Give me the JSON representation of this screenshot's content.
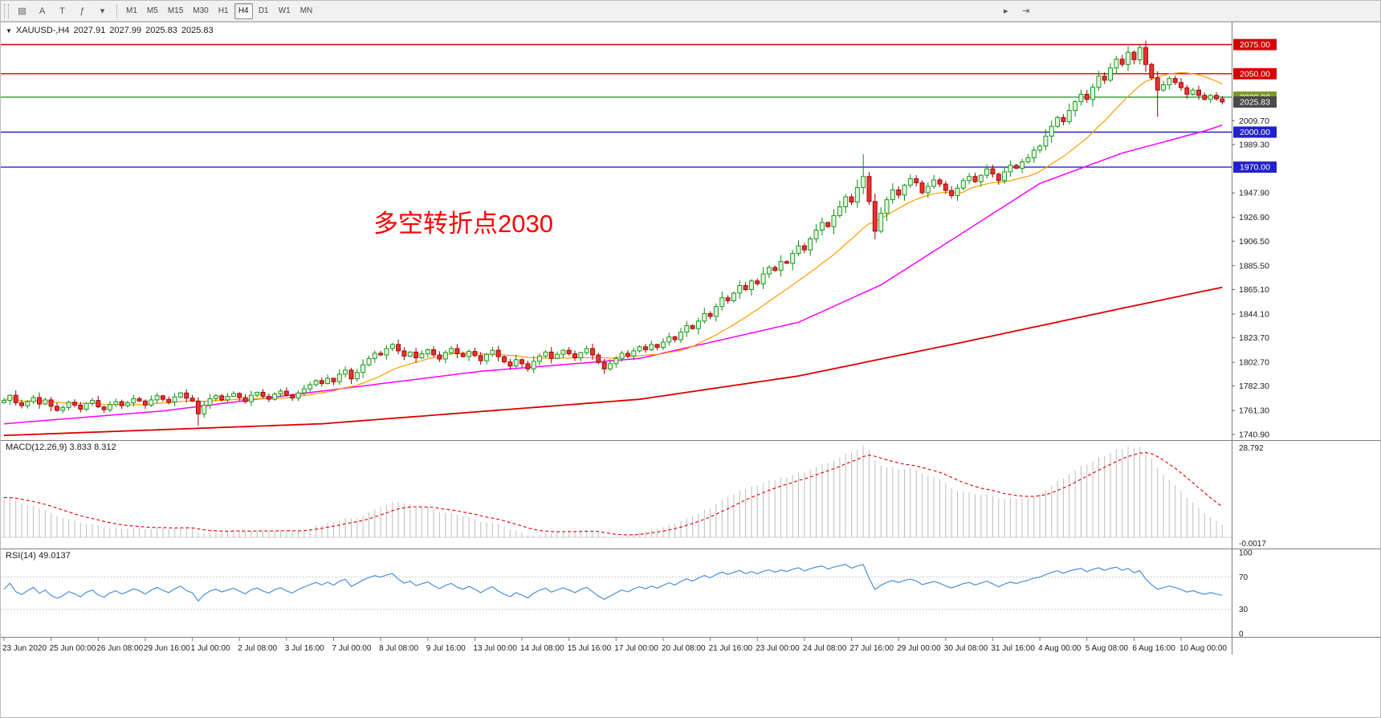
{
  "toolbar": {
    "left_buttons": [
      {
        "name": "chart-type-button",
        "glyph": "▤"
      },
      {
        "name": "cursor-button",
        "glyph": "A"
      },
      {
        "name": "text-tool-button",
        "glyph": "T"
      },
      {
        "name": "indicators-button",
        "glyph": "ƒ"
      },
      {
        "name": "dropdown-button",
        "glyph": "▾"
      }
    ],
    "timeframes": [
      "M1",
      "M5",
      "M15",
      "M30",
      "H1",
      "H4",
      "D1",
      "W1",
      "MN"
    ],
    "active_timeframe": "H4",
    "right_buttons": [
      {
        "name": "auto-scroll-button",
        "glyph": "▸"
      },
      {
        "name": "chart-shift-button",
        "glyph": "⇥"
      }
    ]
  },
  "chart": {
    "symbol_period": "XAUUSD-,H4",
    "open": "2027.91",
    "high": "2027.99",
    "low": "2025.83",
    "close": "2025.83",
    "annotation": "多空转折点2030",
    "current_price": "2025.83",
    "current_price_bg": "#4a4a4a",
    "hlines": [
      {
        "price": 2075.0,
        "color": "#d40000",
        "label": "2075.00",
        "label_bg": "#d40000"
      },
      {
        "price": 2050.0,
        "color": "#d40000",
        "label": "2050.00",
        "label_bg": "#d40000"
      },
      {
        "price": 2030.0,
        "color": "#2e9b2e",
        "label": "2030.00",
        "label_bg": "#7c9a27"
      },
      {
        "price": 2000.0,
        "color": "#2222cc",
        "label": "2000.00",
        "label_bg": "#2222cc"
      },
      {
        "price": 1970.0,
        "color": "#2222cc",
        "label": "1970.00",
        "label_bg": "#2222cc"
      }
    ],
    "y_ticks": [
      "2009.70",
      "1989.30",
      "1947.90",
      "1926.90",
      "1906.50",
      "1885.50",
      "1865.10",
      "1844.10",
      "1823.70",
      "1802.70",
      "1782.30",
      "1761.30",
      "1740.90"
    ]
  },
  "macd": {
    "title": "MACD(12,26,9)",
    "main_value": "3.833",
    "signal_value": "8.312",
    "axis_top": "28.792",
    "axis_bottom": "-0.0017",
    "histogram_color": "#bdbdbd",
    "signal_color": "#e00000"
  },
  "rsi": {
    "title": "RSI(14)",
    "value": "49.0137",
    "axis": [
      "100",
      "70",
      "30",
      "0"
    ],
    "levels": [
      70,
      30
    ],
    "line_color": "#4a90d9"
  },
  "chart_data": {
    "type": "candlestick",
    "symbol": "XAUUSD",
    "timeframe": "H4",
    "title": "XAUUSD-,H4 2027.91 2027.99 2025.83 2025.83",
    "x_labels": [
      "23 Jun 2020",
      "25 Jun 00:00",
      "26 Jun 08:00",
      "29 Jun 16:00",
      "1 Jul 00:00",
      "2 Jul 08:00",
      "3 Jul 16:00",
      "7 Jul 00:00",
      "8 Jul 08:00",
      "9 Jul 16:00",
      "13 Jul 00:00",
      "14 Jul 08:00",
      "15 Jul 16:00",
      "17 Jul 00:00",
      "20 Jul 08:00",
      "21 Jul 16:00",
      "23 Jul 00:00",
      "24 Jul 08:00",
      "27 Jul 16:00",
      "29 Jul 00:00",
      "30 Jul 08:00",
      "31 Jul 16:00",
      "4 Aug 00:00",
      "5 Aug 08:00",
      "6 Aug 16:00",
      "10 Aug 00:00"
    ],
    "candles_per_label": 8,
    "y_range": [
      1736,
      2085
    ],
    "first_open": 1768.0,
    "closes": [
      1770.0,
      1774.5,
      1768.0,
      1765.5,
      1769.0,
      1772.5,
      1767.0,
      1770.5,
      1765.0,
      1761.5,
      1764.0,
      1768.5,
      1766.0,
      1762.5,
      1767.5,
      1770.0,
      1764.5,
      1762.0,
      1766.5,
      1769.0,
      1765.5,
      1768.0,
      1771.5,
      1769.5,
      1766.0,
      1770.5,
      1774.0,
      1771.0,
      1768.5,
      1773.0,
      1776.5,
      1772.0,
      1769.5,
      1758.5,
      1766.0,
      1771.5,
      1774.0,
      1770.5,
      1773.5,
      1776.0,
      1772.5,
      1769.0,
      1774.5,
      1777.0,
      1773.5,
      1771.0,
      1775.5,
      1778.0,
      1774.5,
      1772.0,
      1776.5,
      1780.0,
      1783.5,
      1787.0,
      1784.5,
      1789.0,
      1786.0,
      1792.5,
      1796.0,
      1788.5,
      1794.0,
      1800.5,
      1806.0,
      1810.5,
      1809.0,
      1814.5,
      1818.0,
      1812.5,
      1808.0,
      1811.5,
      1806.5,
      1810.0,
      1813.5,
      1809.0,
      1805.5,
      1811.0,
      1814.5,
      1810.0,
      1807.5,
      1812.0,
      1808.5,
      1804.0,
      1809.5,
      1813.0,
      1807.5,
      1803.0,
      1799.5,
      1805.0,
      1801.5,
      1797.0,
      1803.5,
      1808.0,
      1811.5,
      1806.0,
      1809.5,
      1813.0,
      1810.0,
      1806.5,
      1811.0,
      1814.5,
      1809.0,
      1802.5,
      1797.0,
      1801.5,
      1806.0,
      1810.5,
      1808.0,
      1812.5,
      1816.0,
      1813.5,
      1818.0,
      1815.5,
      1820.0,
      1824.5,
      1822.0,
      1828.5,
      1834.0,
      1831.5,
      1838.0,
      1844.5,
      1842.0,
      1850.5,
      1858.0,
      1855.5,
      1862.0,
      1868.5,
      1865.0,
      1872.5,
      1870.0,
      1878.5,
      1884.0,
      1881.5,
      1889.0,
      1887.5,
      1896.0,
      1902.5,
      1899.0,
      1908.5,
      1916.0,
      1922.5,
      1919.0,
      1928.5,
      1936.0,
      1944.5,
      1940.0,
      1952.5,
      1962.0,
      1940.5,
      1915.0,
      1930.5,
      1942.0,
      1950.5,
      1946.0,
      1954.5,
      1960.0,
      1956.5,
      1948.0,
      1953.5,
      1959.0,
      1955.5,
      1950.0,
      1945.5,
      1952.0,
      1958.5,
      1962.0,
      1957.5,
      1963.0,
      1968.5,
      1964.0,
      1958.5,
      1966.0,
      1971.5,
      1969.0,
      1974.5,
      1978.0,
      1984.5,
      1988.0,
      1996.5,
      2005.0,
      2012.5,
      2009.0,
      2018.5,
      2026.0,
      2032.5,
      2028.0,
      2038.5,
      2048.0,
      2044.5,
      2055.0,
      2062.5,
      2058.0,
      2068.5,
      2062.0,
      2072.5,
      2058.0,
      2046.5,
      2036.0,
      2040.5,
      2046.0,
      2042.5,
      2038.0,
      2032.5,
      2036.0,
      2031.5,
      2028.0,
      2031.5,
      2028.5,
      2025.8
    ],
    "wick_overrides": {
      "33": {
        "low": 1748.5
      },
      "146": {
        "high": 1981.0
      },
      "193": {
        "high": 2075.5
      },
      "196": {
        "low": 2013.0
      }
    },
    "bull_color": "#0a8f0a",
    "bull_fill": "#dff5df",
    "bear_color": "#9c0000",
    "bear_fill": "#e63232",
    "moving_averages": {
      "fast": {
        "type": "sma",
        "window": 16,
        "color": "#ff9c00"
      },
      "mid": {
        "type": "anchors",
        "color": "#ff00ff",
        "points": [
          [
            0,
            1750
          ],
          [
            27,
            1761
          ],
          [
            54,
            1778
          ],
          [
            81,
            1795
          ],
          [
            108,
            1806
          ],
          [
            135,
            1837
          ],
          [
            149,
            1869
          ],
          [
            163,
            1914
          ],
          [
            176,
            1956
          ],
          [
            190,
            1982
          ],
          [
            204,
            2001
          ],
          [
            207,
            2006
          ]
        ]
      },
      "slow": {
        "type": "anchors",
        "color": "#dd0000",
        "points": [
          [
            0,
            1740
          ],
          [
            54,
            1750
          ],
          [
            108,
            1771
          ],
          [
            135,
            1791
          ],
          [
            163,
            1820
          ],
          [
            190,
            1849
          ],
          [
            207,
            1867
          ]
        ]
      }
    },
    "macd": {
      "fast": 12,
      "slow": 26,
      "signal": 9
    },
    "rsi": {
      "period": 14
    }
  }
}
